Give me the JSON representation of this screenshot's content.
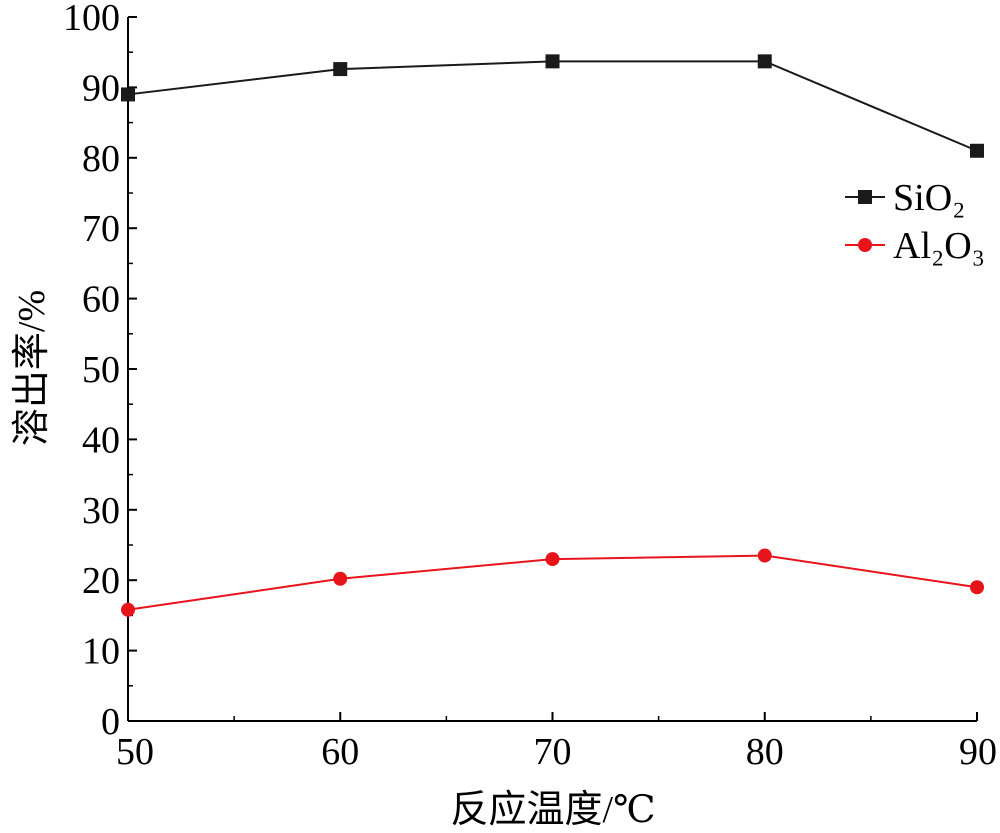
{
  "chart_data": {
    "type": "line",
    "title": "",
    "xlabel": "反应温度/℃",
    "ylabel": "溶出率/%",
    "x": [
      50,
      60,
      70,
      80,
      90
    ],
    "xlim": [
      50,
      90
    ],
    "ylim": [
      0,
      100
    ],
    "xticks": [
      "50",
      "60",
      "70",
      "80",
      "90"
    ],
    "yticks": [
      "0",
      "10",
      "20",
      "30",
      "40",
      "50",
      "60",
      "70",
      "80",
      "90",
      "100"
    ],
    "grid": false,
    "legend_position": "right",
    "series": [
      {
        "name": "SiO₂",
        "values": [
          89,
          92.6,
          93.7,
          93.7,
          81
        ],
        "color": "#1a1a1a",
        "marker": "square"
      },
      {
        "name": "Al₂O₃",
        "values": [
          15.8,
          20.2,
          23,
          23.5,
          19
        ],
        "color": "#e8141b",
        "marker": "circle"
      }
    ]
  }
}
